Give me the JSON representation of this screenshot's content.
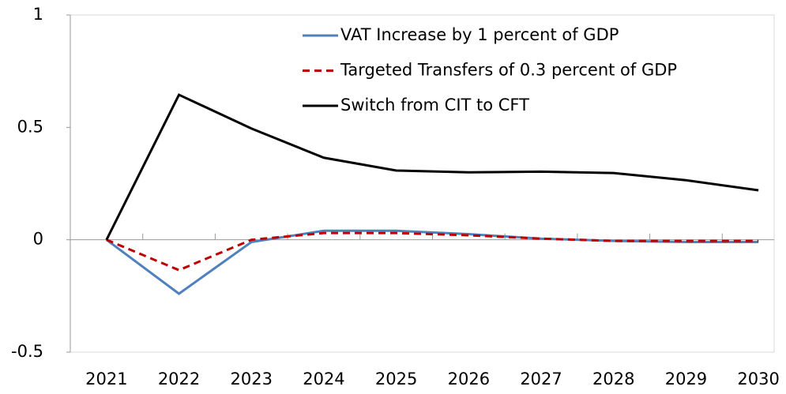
{
  "chart_data": {
    "type": "line",
    "categories": [
      "2021",
      "2022",
      "2023",
      "2024",
      "2025",
      "2026",
      "2027",
      "2028",
      "2029",
      "2030"
    ],
    "series": [
      {
        "name": "VAT Increase by 1 percent of GDP",
        "color": "#4f81bd",
        "dash": false,
        "values": [
          0,
          -0.24,
          -0.01,
          0.04,
          0.04,
          0.025,
          0.005,
          -0.005,
          -0.01,
          -0.01
        ]
      },
      {
        "name": "Targeted Transfers of 0.3 percent of GDP",
        "color": "#c00000",
        "dash": true,
        "values": [
          0,
          -0.135,
          0.0,
          0.03,
          0.03,
          0.02,
          0.005,
          -0.005,
          -0.005,
          -0.005
        ]
      },
      {
        "name": "Switch from CIT to CFT",
        "color": "#000000",
        "dash": false,
        "values": [
          0,
          0.645,
          0.495,
          0.365,
          0.308,
          0.3,
          0.303,
          0.297,
          0.265,
          0.22
        ]
      }
    ],
    "ylim": [
      -0.5,
      1
    ],
    "yticks": [
      -0.5,
      0,
      0.5,
      1
    ],
    "grid": false,
    "legend": "top-right"
  }
}
